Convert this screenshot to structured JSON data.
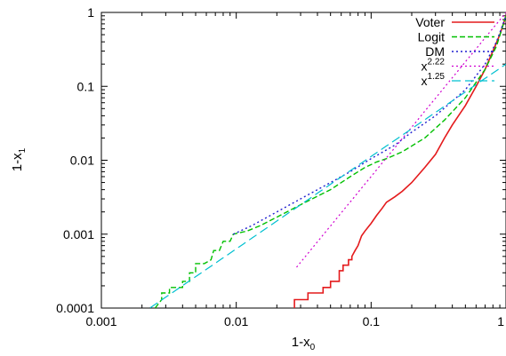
{
  "chart_data": {
    "type": "line",
    "title": "",
    "xlabel": {
      "base": "1-x",
      "sub": "0"
    },
    "ylabel": {
      "base": "1-x",
      "sub": "1"
    },
    "xscale": "log",
    "yscale": "log",
    "xlim": [
      0.001,
      1
    ],
    "ylim": [
      0.0001,
      1
    ],
    "x_ticks": [
      {
        "value": 0.001,
        "label": "0.001"
      },
      {
        "value": 0.01,
        "label": "0.01"
      },
      {
        "value": 0.1,
        "label": "0.1"
      },
      {
        "value": 1,
        "label": "1"
      }
    ],
    "y_ticks": [
      {
        "value": 0.0001,
        "label": "0.0001"
      },
      {
        "value": 0.001,
        "label": "0.001"
      },
      {
        "value": 0.01,
        "label": "0.01"
      },
      {
        "value": 0.1,
        "label": "0.1"
      },
      {
        "value": 1,
        "label": "1"
      }
    ],
    "grid": false,
    "legend_position": "top-right",
    "series": [
      {
        "name": "Voter",
        "color": "#e41a1c",
        "dash": "solid",
        "width": 1.6,
        "points": [
          [
            0.027,
            0.0001
          ],
          [
            0.027,
            0.00013
          ],
          [
            0.034,
            0.00013
          ],
          [
            0.034,
            0.00016
          ],
          [
            0.044,
            0.00016
          ],
          [
            0.044,
            0.00019
          ],
          [
            0.05,
            0.00019
          ],
          [
            0.05,
            0.00023
          ],
          [
            0.058,
            0.00023
          ],
          [
            0.058,
            0.00032
          ],
          [
            0.062,
            0.00032
          ],
          [
            0.062,
            0.00038
          ],
          [
            0.068,
            0.00038
          ],
          [
            0.068,
            0.00045
          ],
          [
            0.072,
            0.00045
          ],
          [
            0.072,
            0.0005
          ],
          [
            0.076,
            0.0006
          ],
          [
            0.08,
            0.0007
          ],
          [
            0.085,
            0.00095
          ],
          [
            0.09,
            0.0011
          ],
          [
            0.1,
            0.0014
          ],
          [
            0.11,
            0.0018
          ],
          [
            0.12,
            0.0022
          ],
          [
            0.13,
            0.0027
          ],
          [
            0.15,
            0.0032
          ],
          [
            0.17,
            0.0038
          ],
          [
            0.2,
            0.005
          ],
          [
            0.25,
            0.008
          ],
          [
            0.3,
            0.012
          ],
          [
            0.35,
            0.02
          ],
          [
            0.4,
            0.03
          ],
          [
            0.5,
            0.055
          ],
          [
            0.6,
            0.1
          ],
          [
            0.7,
            0.17
          ],
          [
            0.8,
            0.3
          ],
          [
            0.9,
            0.5
          ],
          [
            1.0,
            0.9
          ]
        ]
      },
      {
        "name": "Logit",
        "color": "#00c000",
        "dash": "6,3",
        "width": 1.4,
        "points": [
          [
            0.0025,
            0.0001
          ],
          [
            0.0028,
            0.00013
          ],
          [
            0.0028,
            0.00016
          ],
          [
            0.0032,
            0.00016
          ],
          [
            0.0032,
            0.00019
          ],
          [
            0.004,
            0.00019
          ],
          [
            0.004,
            0.00023
          ],
          [
            0.0045,
            0.00023
          ],
          [
            0.0045,
            0.0003
          ],
          [
            0.005,
            0.0003
          ],
          [
            0.005,
            0.0004
          ],
          [
            0.0058,
            0.0004
          ],
          [
            0.0065,
            0.00045
          ],
          [
            0.0068,
            0.0006
          ],
          [
            0.0075,
            0.0006
          ],
          [
            0.008,
            0.0008
          ],
          [
            0.009,
            0.0008
          ],
          [
            0.0095,
            0.001
          ],
          [
            0.012,
            0.0011
          ],
          [
            0.015,
            0.0013
          ],
          [
            0.02,
            0.0017
          ],
          [
            0.03,
            0.0025
          ],
          [
            0.05,
            0.004
          ],
          [
            0.07,
            0.006
          ],
          [
            0.09,
            0.008
          ],
          [
            0.11,
            0.0095
          ],
          [
            0.13,
            0.0105
          ],
          [
            0.17,
            0.013
          ],
          [
            0.25,
            0.02
          ],
          [
            0.35,
            0.035
          ],
          [
            0.5,
            0.07
          ],
          [
            0.7,
            0.17
          ],
          [
            0.85,
            0.35
          ],
          [
            1.0,
            0.9
          ]
        ]
      },
      {
        "name": "DM",
        "color": "#1f1fd0",
        "dash": "2,3",
        "width": 1.4,
        "points": [
          [
            0.0095,
            0.001
          ],
          [
            0.013,
            0.0013
          ],
          [
            0.02,
            0.002
          ],
          [
            0.03,
            0.003
          ],
          [
            0.05,
            0.005
          ],
          [
            0.07,
            0.007
          ],
          [
            0.1,
            0.0105
          ],
          [
            0.15,
            0.016
          ],
          [
            0.2,
            0.024
          ],
          [
            0.3,
            0.04
          ],
          [
            0.5,
            0.09
          ],
          [
            0.7,
            0.2
          ],
          [
            0.85,
            0.4
          ],
          [
            1.0,
            0.9
          ]
        ]
      },
      {
        "name": "x^2.22",
        "legend": {
          "base": "x",
          "sup": "2.22"
        },
        "color": "#d000d0",
        "dash": "2,3",
        "width": 1.2,
        "function": {
          "coef": 1,
          "exponent": 2.22,
          "x_range": [
            0.028,
            1
          ]
        }
      },
      {
        "name": "x^1.25",
        "legend": {
          "base": "x",
          "sup": "1.25"
        },
        "color": "#00c0d0",
        "dash": "10,5",
        "width": 1.2,
        "function": {
          "coef": 0.2,
          "exponent": 1.25,
          "x_range": [
            0.0023,
            1
          ]
        }
      }
    ]
  }
}
